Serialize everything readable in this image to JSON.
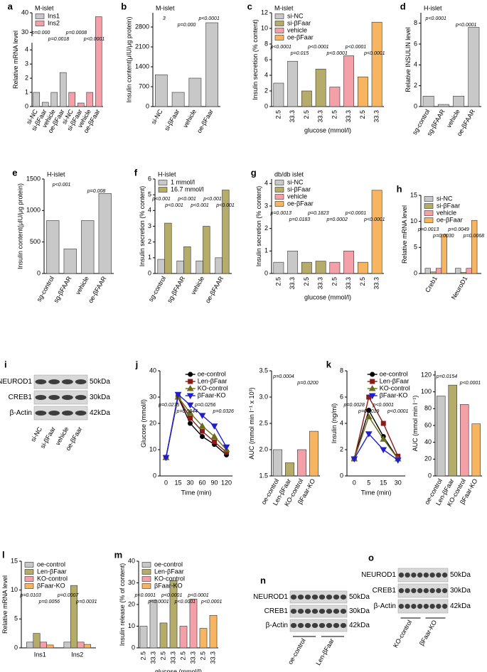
{
  "chart_data": [
    {
      "type": "bar",
      "panel": "a",
      "title": "M-islet",
      "ylabel": "Relative mRNA level",
      "categories": [
        "si-NC",
        "si-βFaar",
        "vehicle",
        "oe-βFaar",
        "si-NC",
        "si-βFaar",
        "vehicle",
        "oe-βFaar"
      ],
      "series": [
        {
          "name": "Ins1",
          "color": "#c8c8c8",
          "values": [
            1,
            0.3,
            1,
            2.4,
            null,
            null,
            null,
            null
          ]
        },
        {
          "name": "Ins2",
          "color": "#f4a0a8",
          "values": [
            null,
            null,
            null,
            null,
            1,
            0.25,
            1,
            38
          ]
        }
      ],
      "ylim": [
        0,
        40
      ],
      "ybreak": [
        4.5,
        28
      ],
      "yticks": [
        0,
        1,
        2,
        3,
        4,
        30,
        40
      ],
      "legend": "upper left",
      "annotations": [
        "p=0.000",
        "p=0.0018",
        "p=0.0008",
        "p<0.0001"
      ]
    },
    {
      "type": "bar",
      "panel": "b",
      "title": "M-islet",
      "ylabel": "Insulin content(μIU/μg protein)",
      "categories": [
        "si-NC",
        "si-βFaar",
        "vehicle",
        "oe-βFaar"
      ],
      "series": [
        {
          "color": "#c8c8c8",
          "values": [
            1120,
            500,
            1000,
            2950
          ]
        }
      ],
      "ylim": [
        0,
        3300
      ],
      "yticks": [
        0,
        700,
        1400,
        2100,
        2800
      ],
      "annotations": [
        "3",
        "p=0.000",
        "p<0.0001"
      ]
    },
    {
      "type": "bar",
      "panel": "c",
      "title": "M-islet",
      "ylabel": "Insulin secretion (% content)",
      "xlabel": "glucose (mmol/l)",
      "categories": [
        "2.5",
        "33.3",
        "2.5",
        "33.3",
        "2.5",
        "33.3",
        "2.5",
        "33.3"
      ],
      "series": [
        {
          "name": "si-NC",
          "color": "#c8c8c8",
          "values": [
            3,
            5.8,
            null,
            null,
            null,
            null,
            null,
            null
          ]
        },
        {
          "name": "si-βFaar",
          "color": "#b5ac6a",
          "values": [
            null,
            null,
            2,
            4.8,
            null,
            null,
            null,
            null
          ]
        },
        {
          "name": "vehicle",
          "color": "#f4a0a8",
          "values": [
            null,
            null,
            null,
            null,
            2.5,
            6.5,
            null,
            null
          ]
        },
        {
          "name": "oe-βFaar",
          "color": "#f7b561",
          "values": [
            null,
            null,
            null,
            null,
            null,
            null,
            3.8,
            10.8
          ]
        }
      ],
      "ylim": [
        0,
        12
      ],
      "yticks": [
        0,
        2,
        4,
        6,
        8,
        10,
        12
      ],
      "legend": "upper left",
      "annotations": [
        "p<0.0001",
        "p=0.015",
        "p<0.0001",
        "p<0.0001",
        "p<0.0001",
        "p<0.0001"
      ]
    },
    {
      "type": "bar",
      "panel": "d",
      "title": "H-islet",
      "ylabel": "Relative INSULIN level",
      "categories": [
        "sg-control",
        "sg-βFAAR",
        "vehicle",
        "oe-βFAAR"
      ],
      "series": [
        {
          "color": "#c8c8c8",
          "values": [
            1,
            0.2,
            1,
            7.6
          ]
        }
      ],
      "ylim": [
        0,
        9
      ],
      "yticks": [
        0,
        2,
        4,
        6,
        8
      ],
      "annotations": [
        "p<0.0001",
        "p<0.0001"
      ]
    },
    {
      "type": "bar",
      "panel": "e",
      "title": "H-islet",
      "ylabel": "Insulin content(μIU/μg protein)",
      "categories": [
        "sg-control",
        "sg-βFAAR",
        "vehicle",
        "oe-βFAAR"
      ],
      "series": [
        {
          "color": "#c8c8c8",
          "values": [
            840,
            390,
            840,
            1270
          ]
        }
      ],
      "ylim": [
        0,
        1500
      ],
      "yticks": [
        0,
        500,
        1000,
        1500
      ],
      "annotations": [
        "p<0.001",
        "p=0.008"
      ]
    },
    {
      "type": "bar",
      "panel": "f",
      "title": "H-islet",
      "ylabel": "Insulin secretion (% content)",
      "categories": [
        "sg-control",
        "sg-βFAAR",
        "vehicle",
        "oe-βFAAR"
      ],
      "series": [
        {
          "name": "1 mmol/l",
          "color": "#c8c8c8",
          "values": [
            0.9,
            0.8,
            0.8,
            1.0
          ]
        },
        {
          "name": "16.7 mmol/l",
          "color": "#b5ac6a",
          "values": [
            3.2,
            1.7,
            3.0,
            5.3
          ]
        }
      ],
      "ylim": [
        0,
        6
      ],
      "yticks": [
        0,
        1,
        2,
        3,
        4,
        5,
        6
      ],
      "legend": "upper left",
      "annotations": [
        "p<0.001",
        "p<0.001",
        "p<0.001",
        "p<0.001",
        "p<0.001",
        "p<0.001"
      ]
    },
    {
      "type": "bar",
      "panel": "g",
      "title": "db/db  islet",
      "ylabel": "Insulin secretion (% content)",
      "xlabel": "glucose (mmol/l)",
      "categories": [
        "2.5",
        "33.3",
        "2.5",
        "33.3",
        "2.5",
        "33.3",
        "2.5",
        "33.3"
      ],
      "series": [
        {
          "name": "si-NC",
          "color": "#c8c8c8",
          "values": [
            0.5,
            1.0,
            null,
            null,
            null,
            null,
            null,
            null
          ]
        },
        {
          "name": "si-βFaar",
          "color": "#b5ac6a",
          "values": [
            null,
            null,
            0.5,
            0.55,
            null,
            null,
            null,
            null
          ]
        },
        {
          "name": "vehicle",
          "color": "#f4a0a8",
          "values": [
            null,
            null,
            null,
            null,
            0.5,
            1.0,
            null,
            null
          ]
        },
        {
          "name": "oe-βFaar",
          "color": "#f7b561",
          "values": [
            null,
            null,
            null,
            null,
            null,
            null,
            0.5,
            3.7
          ]
        }
      ],
      "ylim": [
        0,
        4.2
      ],
      "yticks": [
        0,
        1,
        2,
        3,
        4
      ],
      "legend": "upper left",
      "annotations": [
        "p=0.0013",
        "p=0.0183",
        "p=0.1823",
        "p=0.0002",
        "p<0.0001",
        "p<0.0001"
      ]
    },
    {
      "type": "bar",
      "panel": "h",
      "ylabel": "Relative mRNA level",
      "categories": [
        "Creb1",
        "NeuroD1"
      ],
      "series": [
        {
          "name": "si-NC",
          "color": "#c8c8c8",
          "values": [
            1,
            1
          ]
        },
        {
          "name": "si-βFaar",
          "color": "#b5ac6a",
          "values": [
            0.3,
            0.2
          ]
        },
        {
          "name": "vehicle",
          "color": "#f4a0a8",
          "values": [
            1,
            1
          ]
        },
        {
          "name": "oe-βFaar",
          "color": "#f7b561",
          "values": [
            7.5,
            10.2
          ]
        }
      ],
      "ylim": [
        0,
        15
      ],
      "yticks": [
        0,
        5,
        10,
        15
      ],
      "legend": "upper left",
      "annotations": [
        "p=0.0013",
        "p=0.0030",
        "p=0.0049",
        "p=0.0068"
      ]
    },
    {
      "type": "line",
      "panel": "j",
      "ylabel": "Glucose (mmol/l)",
      "xlabel": "Time (min)",
      "categories": [
        "0",
        "15",
        "30",
        "60",
        "90",
        "120"
      ],
      "series": [
        {
          "name": "oe-control",
          "color": "#000000",
          "marker": "circle",
          "values": [
            7,
            30,
            20,
            15,
            12,
            8
          ]
        },
        {
          "name": "Len-βFaar",
          "color": "#8b1a1a",
          "marker": "square",
          "values": [
            7,
            30,
            22,
            17,
            13,
            9
          ]
        },
        {
          "name": "KO-control",
          "color": "#6b6b1a",
          "marker": "triangle",
          "values": [
            7,
            30,
            24,
            19,
            15,
            10
          ]
        },
        {
          "name": "βFaar-KO",
          "color": "#1f1fcc",
          "marker": "triangle-down",
          "values": [
            7,
            31,
            27,
            23,
            19,
            11
          ]
        }
      ],
      "ylim": [
        0,
        40
      ],
      "yticks": [
        0,
        10,
        20,
        30,
        40
      ],
      "legend": "upper right",
      "annotations": [
        "p=0.0275",
        "p=0.0044",
        "p=0.0256",
        "p=0.0326"
      ]
    },
    {
      "type": "bar",
      "ylabel": "AUC (mmol min l⁻¹ x 10³)",
      "categories": [
        "oe-control",
        "Len-βFaar",
        "KO-control",
        "βFaar-KO"
      ],
      "series": [
        {
          "color": "#c8c8c8",
          "values": [
            2.0,
            null,
            null,
            null
          ]
        },
        {
          "color": "#b5ac6a",
          "values": [
            null,
            1.75,
            null,
            null
          ]
        },
        {
          "color": "#f4a0a8",
          "values": [
            null,
            null,
            2.0,
            null
          ]
        },
        {
          "color": "#f7b561",
          "values": [
            null,
            null,
            null,
            2.35
          ]
        }
      ],
      "ylim": [
        1.5,
        3.5
      ],
      "yticks": [
        1.5,
        {
          "value": 2,
          "label": "2.0"
        },
        2.5,
        {
          "value": 3,
          "label": "3.0"
        },
        3.5
      ],
      "annotations": [
        "p=0.0004",
        "p=0.0200"
      ]
    },
    {
      "type": "line",
      "panel": "k",
      "ylabel": "Insulin (ng/ml)",
      "xlabel": "Time (min)",
      "categories": [
        "0",
        "5",
        "15",
        "30"
      ],
      "series": [
        {
          "name": "oe-control",
          "color": "#000000",
          "marker": "circle",
          "values": [
            1.3,
            5,
            3,
            1.3
          ]
        },
        {
          "name": "Len-βFaar",
          "color": "#8b1a1a",
          "marker": "square",
          "values": [
            1.3,
            6,
            4,
            1.5
          ]
        },
        {
          "name": "KO-control",
          "color": "#6b6b1a",
          "marker": "triangle",
          "values": [
            1.3,
            4.5,
            2.8,
            1.3
          ]
        },
        {
          "name": "βFaar-KO",
          "color": "#1f1fcc",
          "marker": "triangle-down",
          "values": [
            1.3,
            3.2,
            2,
            1.2
          ]
        }
      ],
      "ylim": [
        0,
        8
      ],
      "yticks": [
        0,
        2,
        4,
        6,
        8
      ],
      "legend": "upper right",
      "annotations": [
        "p=0.0028",
        "p=0.0019",
        "p<0.0001",
        "p<0.0001"
      ]
    },
    {
      "type": "bar",
      "ylabel": "AUC (mmol min l⁻¹)",
      "categories": [
        "oe-control",
        "Len-βFaar",
        "KO-control",
        "βFaar-KO"
      ],
      "series": [
        {
          "color": "#c8c8c8",
          "values": [
            95,
            null,
            null,
            null
          ]
        },
        {
          "color": "#b5ac6a",
          "values": [
            null,
            108,
            null,
            null
          ]
        },
        {
          "color": "#f4a0a8",
          "values": [
            null,
            null,
            85,
            null
          ]
        },
        {
          "color": "#f7b561",
          "values": [
            null,
            null,
            null,
            62
          ]
        }
      ],
      "ylim": [
        0,
        125
      ],
      "yticks": [
        0,
        20,
        40,
        60,
        80,
        100,
        120
      ],
      "annotations": [
        "p=0.0154",
        "p<0.0001"
      ]
    },
    {
      "type": "bar",
      "panel": "l",
      "ylabel": "Relative mRNA level",
      "categories": [
        "Ins1",
        "Ins2"
      ],
      "series": [
        {
          "name": "oe-control",
          "color": "#c8c8c8",
          "values": [
            1,
            1
          ]
        },
        {
          "name": "Len-βFaar",
          "color": "#b5ac6a",
          "values": [
            2.5,
            10.8
          ]
        },
        {
          "name": "KO-control",
          "color": "#f4a0a8",
          "values": [
            1,
            1
          ]
        },
        {
          "name": "βFaar-KO",
          "color": "#f7b561",
          "values": [
            0.5,
            0.6
          ]
        }
      ],
      "ylim": [
        0,
        15
      ],
      "yticks": [
        0,
        5,
        10,
        15
      ],
      "legend": "upper left",
      "annotations": [
        "p=0.0103",
        "p=0.0056",
        "p=0.0007",
        "p=0.0031"
      ]
    },
    {
      "type": "bar",
      "panel": "m",
      "ylabel": "Insulin release (% of content)",
      "xlabel": "glucose (mmol/l)",
      "categories": [
        "2.5",
        "33.3",
        "2.5",
        "33.3",
        "2.5",
        "33.3",
        "2.5",
        "33.3"
      ],
      "series": [
        {
          "name": "oe-control",
          "color": "#c8c8c8",
          "values": [
            10,
            22,
            null,
            null,
            null,
            null,
            null,
            null
          ]
        },
        {
          "name": "Len-βFaar",
          "color": "#b5ac6a",
          "values": [
            null,
            null,
            11.5,
            31,
            null,
            null,
            null,
            null
          ]
        },
        {
          "name": "KO-control",
          "color": "#f4a0a8",
          "values": [
            null,
            null,
            null,
            null,
            10,
            22.5,
            null,
            null
          ]
        },
        {
          "name": "βFaar-KO",
          "color": "#f7b561",
          "values": [
            null,
            null,
            null,
            null,
            null,
            null,
            9,
            15
          ]
        }
      ],
      "ylim": [
        0,
        40
      ],
      "yticks": [
        0,
        10,
        20,
        30,
        40
      ],
      "legend": "upper left",
      "annotations": [
        "p<0.0001",
        "p<0.0001",
        "p<0.0001",
        "p<0.0001",
        "p<0.0001",
        "p<0.0001"
      ]
    }
  ],
  "blots": [
    {
      "panel": "i",
      "proteins": [
        "NEUROD1",
        "CREB1",
        "β-Actin"
      ],
      "sizes": [
        "50kDa",
        "30kDa",
        "42kDa"
      ],
      "lanes": [
        "si-NC",
        "si-βFaar",
        "vehicle",
        "oe-βFaar"
      ]
    },
    {
      "panel": "n",
      "proteins": [
        "NEUROD1",
        "CREB1",
        "β-Actin"
      ],
      "sizes": [
        "50kDa",
        "30kDa",
        "42kDa"
      ],
      "lanes": [
        "oe-control",
        "Len-βFaar"
      ]
    },
    {
      "panel": "o",
      "proteins": [
        "NEUROD1",
        "CREB1",
        "β-Actin"
      ],
      "sizes": [
        "50kDa",
        "30kDa",
        "42kDa"
      ],
      "lanes": [
        "KO-control",
        "βFaar-KO"
      ]
    }
  ]
}
